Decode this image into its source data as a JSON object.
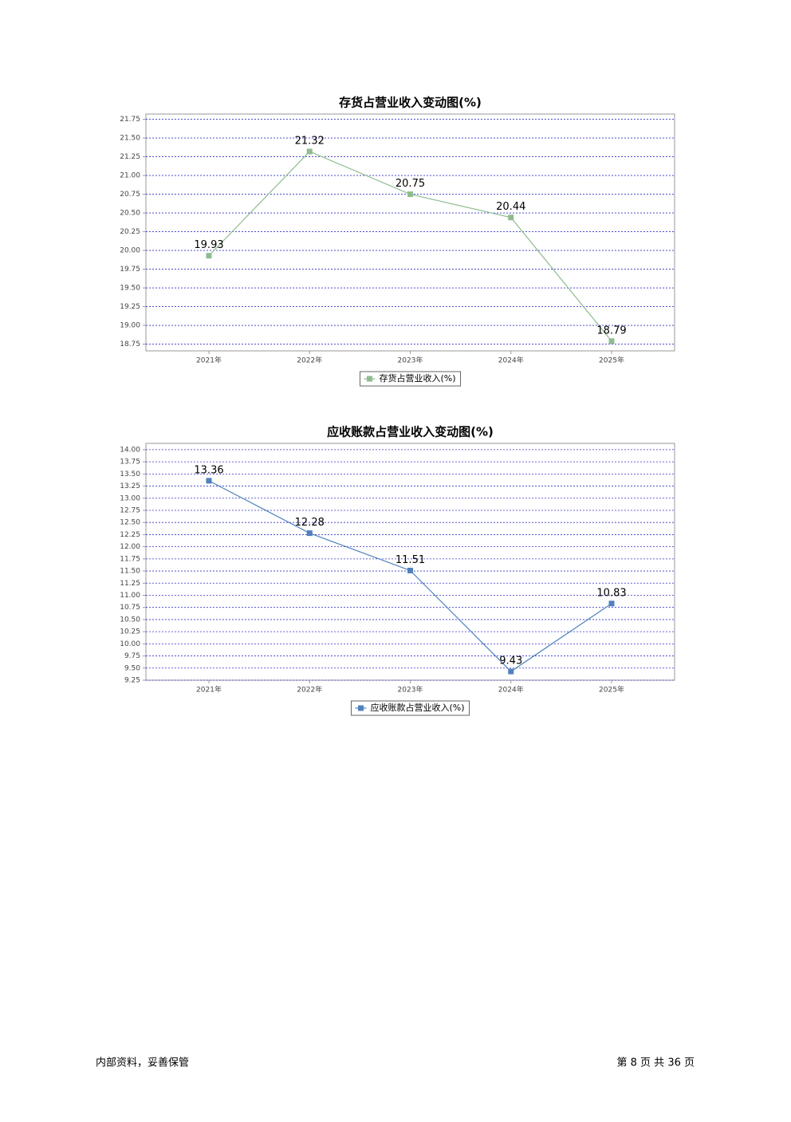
{
  "chart_data": [
    {
      "type": "line",
      "title": "存货占营业收入变动图(%)",
      "categories": [
        "2021年",
        "2022年",
        "2023年",
        "2024年",
        "2025年"
      ],
      "series": [
        {
          "name": "存货占营业收入(%)",
          "color": "#8fbc8f",
          "values": [
            19.93,
            21.32,
            20.75,
            20.44,
            18.79
          ]
        }
      ],
      "ylim": [
        18.66,
        21.82
      ],
      "yticks": [
        18.75,
        {
          "value": 19,
          "label": "19.00"
        },
        19.25,
        {
          "value": 19.5,
          "label": "19.50"
        },
        19.75,
        {
          "value": 20,
          "label": "20.00"
        },
        20.25,
        {
          "value": 20.5,
          "label": "20.50"
        },
        20.75,
        {
          "value": 21,
          "label": "21.00"
        },
        21.25,
        {
          "value": 21.5,
          "label": "21.50"
        },
        21.75
      ],
      "grid": true,
      "legend": "bottom"
    },
    {
      "type": "line",
      "title": "应收账款占营业收入变动图(%)",
      "categories": [
        "2021年",
        "2022年",
        "2023年",
        "2024年",
        "2025年"
      ],
      "series": [
        {
          "name": "应收账款占营业收入(%)",
          "color": "#4f81bd",
          "values": [
            13.36,
            12.28,
            11.51,
            9.43,
            10.83
          ]
        }
      ],
      "ylim": [
        9.25,
        14.13
      ],
      "yticks": [
        9.25,
        {
          "value": 9.5,
          "label": "9.50"
        },
        9.75,
        {
          "value": 10,
          "label": "10.00"
        },
        10.25,
        {
          "value": 10.5,
          "label": "10.50"
        },
        10.75,
        {
          "value": 11,
          "label": "11.00"
        },
        11.25,
        {
          "value": 11.5,
          "label": "11.50"
        },
        11.75,
        {
          "value": 12,
          "label": "12.00"
        },
        12.25,
        {
          "value": 12.5,
          "label": "12.50"
        },
        12.75,
        {
          "value": 13,
          "label": "13.00"
        },
        13.25,
        {
          "value": 13.5,
          "label": "13.50"
        },
        13.75,
        {
          "value": 14,
          "label": "14.00"
        }
      ],
      "grid": true,
      "legend": "bottom"
    }
  ],
  "footer": {
    "left": "内部资料，妥善保管",
    "right": "第 8 页  共 36 页"
  }
}
